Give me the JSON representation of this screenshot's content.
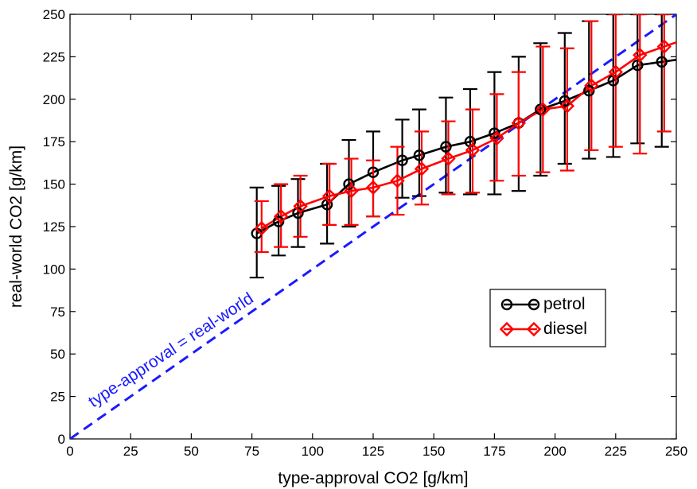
{
  "chart_data": {
    "type": "line",
    "xlabel": "type-approval CO2 [g/km]",
    "ylabel": "real-world CO2 [g/km]",
    "xlim": [
      0,
      250
    ],
    "ylim": [
      0,
      250
    ],
    "xticks": [
      0,
      25,
      50,
      75,
      100,
      125,
      150,
      175,
      200,
      225,
      250
    ],
    "yticks": [
      0,
      25,
      50,
      75,
      100,
      125,
      150,
      175,
      200,
      225,
      250
    ],
    "grid": false,
    "legend_position": "lower-right",
    "reference_line": {
      "label": "type-approval = real-world",
      "x": [
        0,
        250
      ],
      "y": [
        0,
        250
      ],
      "color": "#1a1aff",
      "style": "dashed"
    },
    "series": [
      {
        "name": "petrol",
        "color": "#000000",
        "marker": "circle",
        "x": [
          77,
          86,
          94,
          106,
          115,
          125,
          137,
          144,
          155,
          165,
          175,
          185,
          194,
          204,
          214,
          224,
          234,
          244
        ],
        "y": [
          121,
          128,
          133,
          138,
          150,
          157,
          164,
          167,
          172,
          175,
          180,
          186,
          194,
          199,
          205,
          211,
          220,
          222
        ],
        "err_low": [
          95,
          108,
          113,
          115,
          125,
          131,
          142,
          143,
          145,
          144,
          144,
          146,
          155,
          162,
          165,
          166,
          174,
          172
        ],
        "err_high": [
          148,
          149,
          153,
          162,
          176,
          181,
          188,
          194,
          201,
          206,
          216,
          225,
          233,
          239,
          246,
          250,
          250,
          250
        ]
      },
      {
        "name": "diesel",
        "color": "#ff0000",
        "marker": "diamond",
        "x": [
          79,
          87,
          95,
          107,
          116,
          125,
          135,
          145,
          156,
          166,
          176,
          185,
          195,
          205,
          215,
          225,
          235,
          245
        ],
        "y": [
          124,
          131,
          137,
          143,
          146,
          148,
          152,
          159,
          165,
          170,
          177,
          186,
          194,
          196,
          208,
          216,
          226,
          231
        ],
        "err_low": [
          110,
          113,
          119,
          126,
          126,
          131,
          132,
          138,
          144,
          145,
          152,
          155,
          157,
          158,
          170,
          172,
          168,
          181
        ],
        "err_high": [
          140,
          150,
          155,
          162,
          165,
          164,
          172,
          181,
          187,
          194,
          203,
          216,
          231,
          230,
          246,
          250,
          250,
          250
        ]
      }
    ]
  }
}
